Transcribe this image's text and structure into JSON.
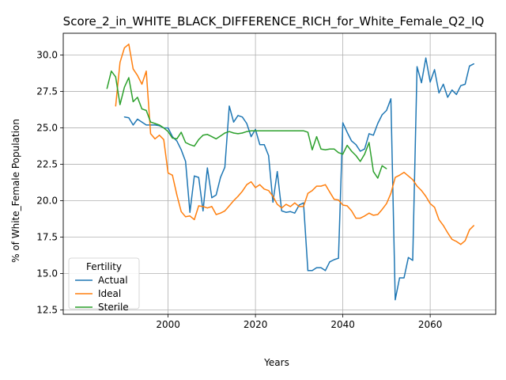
{
  "chart_data": {
    "type": "line",
    "title": "Score_2_in_WHITE_BLACK_DIFFERENCE_RICH_for_White_Female_Q2_IQ",
    "xlabel": "Years",
    "ylabel": "% of White_Female Population",
    "xlim": [
      1976,
      2075
    ],
    "ylim": [
      12.2,
      31.5
    ],
    "x_ticks": [
      2000,
      2020,
      2040,
      2060
    ],
    "y_ticks": [
      12.5,
      15.0,
      17.5,
      20.0,
      22.5,
      25.0,
      27.5,
      30.0
    ],
    "y_tick_labels": [
      "12.5",
      "15.0",
      "17.5",
      "20.0",
      "22.5",
      "25.0",
      "27.5",
      "30.0"
    ],
    "grid": true,
    "legend": {
      "title": "Fertility",
      "placement": "lower-left"
    },
    "series": [
      {
        "name": "Actual",
        "color": "#1f77b4",
        "x": [
          1990,
          1991,
          1992,
          1993,
          1994,
          1995,
          1996,
          1997,
          1998,
          1999,
          2000,
          2001,
          2002,
          2003,
          2004,
          2005,
          2006,
          2007,
          2008,
          2009,
          2010,
          2011,
          2012,
          2013,
          2014,
          2015,
          2016,
          2017,
          2018,
          2019,
          2020,
          2021,
          2022,
          2023,
          2024,
          2025,
          2026,
          2027,
          2028,
          2029,
          2030,
          2031,
          2032,
          2033,
          2034,
          2035,
          2036,
          2037,
          2038,
          2039,
          2040,
          2041,
          2042,
          2043,
          2044,
          2045,
          2046,
          2047,
          2048,
          2049,
          2050,
          2051,
          2052,
          2053,
          2054,
          2055,
          2056,
          2057,
          2058,
          2059,
          2060,
          2061,
          2062,
          2063,
          2064,
          2065,
          2066,
          2067,
          2068,
          2069,
          2070
        ],
        "values": [
          25.75,
          25.7,
          25.2,
          25.6,
          25.4,
          25.2,
          25.2,
          25.2,
          25.15,
          25.0,
          25.0,
          24.4,
          24.1,
          23.5,
          22.7,
          19.2,
          21.7,
          21.6,
          19.3,
          22.25,
          20.2,
          20.4,
          21.6,
          22.3,
          26.5,
          25.4,
          25.85,
          25.75,
          25.3,
          24.4,
          24.9,
          23.85,
          23.85,
          23.1,
          19.9,
          22.0,
          19.3,
          19.2,
          19.25,
          19.15,
          19.7,
          19.85,
          15.2,
          15.2,
          15.4,
          15.4,
          15.2,
          15.8,
          15.95,
          16.05,
          25.35,
          24.7,
          24.1,
          23.85,
          23.4,
          23.55,
          24.6,
          24.5,
          25.3,
          25.9,
          26.2,
          27.0,
          13.2,
          14.7,
          14.7,
          16.1,
          15.9,
          29.2,
          28.1,
          29.8,
          28.15,
          29.0,
          27.4,
          28.0,
          27.1,
          27.6,
          27.3,
          27.9,
          28.0,
          29.25,
          29.4
        ]
      },
      {
        "name": "Ideal",
        "color": "#ff7f0e",
        "x": [
          1988,
          1989,
          1990,
          1991,
          1992,
          1993,
          1994,
          1995,
          1996,
          1997,
          1998,
          1999,
          2000,
          2001,
          2002,
          2003,
          2004,
          2005,
          2006,
          2007,
          2008,
          2009,
          2010,
          2011,
          2012,
          2013,
          2014,
          2015,
          2016,
          2017,
          2018,
          2019,
          2020,
          2021,
          2022,
          2023,
          2024,
          2025,
          2026,
          2027,
          2028,
          2029,
          2030,
          2031,
          2032,
          2033,
          2034,
          2035,
          2036,
          2037,
          2038,
          2039,
          2040,
          2041,
          2042,
          2043,
          2044,
          2045,
          2046,
          2047,
          2048,
          2049,
          2050,
          2051,
          2052,
          2053,
          2054,
          2055,
          2056,
          2057,
          2058,
          2059,
          2060,
          2061,
          2062,
          2063,
          2064,
          2065,
          2066,
          2067,
          2068,
          2069,
          2070
        ],
        "values": [
          26.5,
          29.5,
          30.5,
          30.75,
          29.05,
          28.6,
          28.0,
          28.9,
          24.6,
          24.25,
          24.5,
          24.2,
          21.9,
          21.75,
          20.4,
          19.25,
          18.9,
          18.95,
          18.7,
          19.65,
          19.6,
          19.5,
          19.6,
          19.05,
          19.15,
          19.3,
          19.65,
          20.0,
          20.3,
          20.65,
          21.1,
          21.3,
          20.9,
          21.1,
          20.8,
          20.7,
          20.3,
          19.75,
          19.5,
          19.75,
          19.6,
          19.85,
          19.6,
          19.6,
          20.5,
          20.7,
          21.0,
          21.0,
          21.1,
          20.6,
          20.1,
          20.05,
          19.7,
          19.65,
          19.3,
          18.8,
          18.8,
          18.95,
          19.15,
          19.0,
          19.05,
          19.4,
          19.8,
          20.5,
          21.6,
          21.75,
          21.95,
          21.7,
          21.45,
          21.0,
          20.7,
          20.3,
          19.8,
          19.55,
          18.7,
          18.3,
          17.8,
          17.35,
          17.2,
          17.0,
          17.25,
          18.0,
          18.3
        ]
      },
      {
        "name": "Sterile",
        "color": "#2ca02c",
        "x": [
          1986,
          1987,
          1988,
          1989,
          1990,
          1991,
          1992,
          1993,
          1994,
          1995,
          1996,
          1997,
          1998,
          1999,
          2000,
          2001,
          2002,
          2003,
          2004,
          2005,
          2006,
          2007,
          2008,
          2009,
          2010,
          2011,
          2012,
          2013,
          2014,
          2015,
          2016,
          2017,
          2018,
          2019,
          2020,
          2021,
          2022,
          2023,
          2024,
          2025,
          2026,
          2027,
          2028,
          2029,
          2030,
          2031,
          2032,
          2033,
          2034,
          2035,
          2036,
          2037,
          2038,
          2039,
          2040,
          2041,
          2042,
          2043,
          2044,
          2045,
          2046,
          2047,
          2048,
          2049,
          2050
        ],
        "values": [
          27.7,
          28.9,
          28.5,
          26.6,
          27.8,
          28.45,
          26.8,
          27.1,
          26.3,
          26.2,
          25.4,
          25.3,
          25.2,
          25.0,
          24.75,
          24.3,
          24.25,
          24.7,
          24.0,
          23.85,
          23.75,
          24.2,
          24.5,
          24.55,
          24.4,
          24.25,
          24.45,
          24.65,
          24.75,
          24.65,
          24.6,
          24.65,
          24.75,
          24.8,
          24.8,
          24.8,
          24.8,
          24.8,
          24.8,
          24.8,
          24.8,
          24.8,
          24.8,
          24.8,
          24.8,
          24.8,
          24.7,
          23.5,
          24.4,
          23.55,
          23.5,
          23.55,
          23.55,
          23.3,
          23.2,
          23.8,
          23.4,
          23.1,
          22.7,
          23.2,
          24.0,
          22.0,
          21.55,
          22.4,
          22.2
        ]
      }
    ]
  }
}
